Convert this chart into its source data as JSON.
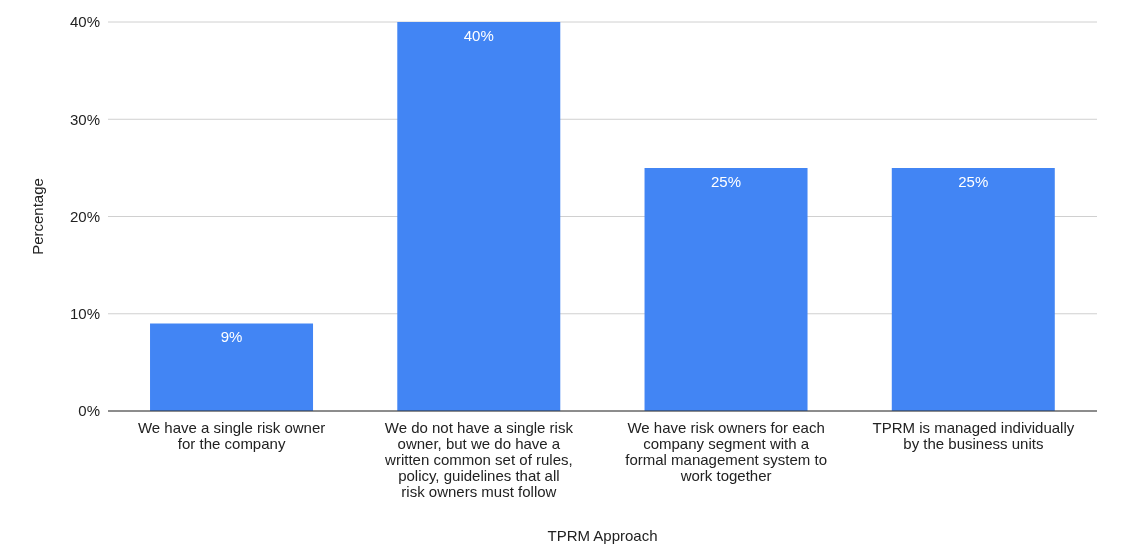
{
  "chart_data": {
    "type": "bar",
    "xlabel": "TPRM Approach",
    "ylabel": "Percentage",
    "categories": [
      "We have a single risk owner for the company",
      "We do not have a single risk owner, but we do have a written common set of rules, policy, guidelines that all risk owners must follow",
      "We have risk owners for each company segment with a formal management system to work together",
      "TPRM is managed individually by the business units"
    ],
    "values": [
      9,
      40,
      25,
      25
    ],
    "value_labels": [
      "9%",
      "40%",
      "25%",
      "25%"
    ],
    "color": "#4285f4",
    "ylim": [
      0,
      40
    ],
    "yticks": [
      {
        "value": 0,
        "label": "0%"
      },
      {
        "value": 10,
        "label": "10%"
      },
      {
        "value": 20,
        "label": "20%"
      },
      {
        "value": 30,
        "label": "30%"
      },
      {
        "value": 40,
        "label": "40%"
      }
    ],
    "grid": "y",
    "legend": false
  }
}
